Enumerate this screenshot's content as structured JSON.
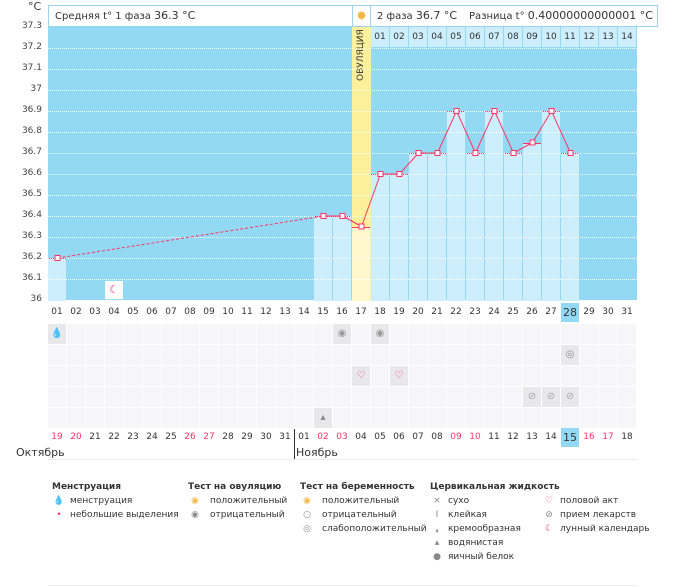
{
  "header": {
    "unit": "°C",
    "phase1": "Средняя t° 1 фаза",
    "phase1_value": "36.3 °C",
    "phase2": "2 фаза",
    "phase2_value": "36.7 °C",
    "diff_label": "Разница t°",
    "diff_value": "0.40000000000001 °C",
    "ovulation_label": "ОВУЛЯЦИЯ"
  },
  "colors": {
    "bg": "#94d9f3",
    "bar": "#cdeefc",
    "ovulation": "#fdf09b",
    "line": "#ff3366",
    "weekend": "#ff3366",
    "highlight": "#94d9f3"
  },
  "chart_data": {
    "type": "line",
    "ylim": [
      36,
      37.3
    ],
    "yticks": [
      "37.3",
      "37.2",
      "37.1",
      "37",
      "36.9",
      "36.8",
      "36.7",
      "36.6",
      "36.5",
      "36.4",
      "36.3",
      "36.2",
      "36.1",
      "36"
    ],
    "days": [
      "01",
      "02",
      "03",
      "04",
      "05",
      "06",
      "07",
      "08",
      "09",
      "10",
      "11",
      "12",
      "13",
      "14",
      "15",
      "16",
      "17",
      "18",
      "19",
      "20",
      "21",
      "22",
      "23",
      "24",
      "25",
      "26",
      "27",
      "28",
      "29",
      "30",
      "31"
    ],
    "temps": [
      36.2,
      null,
      null,
      null,
      null,
      null,
      null,
      null,
      null,
      null,
      null,
      null,
      null,
      null,
      36.4,
      36.4,
      36.35,
      36.6,
      36.6,
      36.7,
      36.7,
      36.9,
      36.7,
      36.9,
      36.7,
      36.75,
      36.9,
      36.7,
      null,
      null,
      null
    ],
    "ovulation_day": 17,
    "current_day": 28,
    "phase2_days": [
      "01",
      "02",
      "03",
      "04",
      "05",
      "06",
      "07",
      "08",
      "09",
      "10",
      "11",
      "12",
      "13",
      "14"
    ]
  },
  "calendar": {
    "dates": [
      "19",
      "20",
      "21",
      "22",
      "23",
      "24",
      "25",
      "26",
      "27",
      "28",
      "29",
      "30",
      "31",
      "01",
      "02",
      "03",
      "04",
      "05",
      "06",
      "07",
      "08",
      "09",
      "10",
      "11",
      "12",
      "13",
      "14",
      "15",
      "16",
      "17",
      "18"
    ],
    "weekends": [
      0,
      1,
      7,
      8,
      14,
      15,
      21,
      22,
      28,
      29
    ],
    "months": [
      "Октябрь",
      "Ноябрь"
    ],
    "moon_day": 4,
    "rows": [
      [
        {
          "d": 1,
          "icon": "menstruation"
        },
        {
          "d": 16,
          "icon": "ovulation-negative"
        },
        {
          "d": 18,
          "icon": "ovulation-negative"
        }
      ],
      [
        {
          "d": 28,
          "icon": "pregnancy-weak"
        }
      ],
      [
        {
          "d": 17,
          "icon": "heart"
        },
        {
          "d": 19,
          "icon": "heart"
        }
      ],
      [
        {
          "d": 26,
          "icon": "pill"
        },
        {
          "d": 27,
          "icon": "pill"
        },
        {
          "d": 28,
          "icon": "pill"
        }
      ],
      [
        {
          "d": 15,
          "icon": "drop"
        }
      ]
    ]
  },
  "legend": [
    {
      "title": "Менструация",
      "items": [
        {
          "icon": "menstruation",
          "label": "менструация",
          "g": "💧"
        },
        {
          "icon": "spotting",
          "label": "небольшие выделения",
          "g": "•"
        }
      ]
    },
    {
      "title": "Тест на овуляцию",
      "items": [
        {
          "icon": "positive",
          "label": "положительный",
          "g": "◉"
        },
        {
          "icon": "negative",
          "label": "отрицательный",
          "g": "◉"
        }
      ]
    },
    {
      "title": "Тест на беременность",
      "items": [
        {
          "icon": "positive",
          "label": "положительный",
          "g": "◉"
        },
        {
          "icon": "negative",
          "label": "отрицательный",
          "g": "○"
        },
        {
          "icon": "weak",
          "label": "слабоположительный",
          "g": "◎"
        }
      ]
    },
    {
      "title": "Цервикальная жидкость",
      "items": [
        {
          "icon": "dry",
          "label": "сухо",
          "g": "×"
        },
        {
          "icon": "sticky",
          "label": "клейкая",
          "g": "I"
        },
        {
          "icon": "creamy",
          "label": "кремообразная",
          "g": "❟"
        },
        {
          "icon": "watery",
          "label": "водянистая",
          "g": "▴"
        },
        {
          "icon": "egg-white",
          "label": "яичный белок",
          "g": "●"
        }
      ]
    },
    {
      "title": "",
      "items": [
        {
          "icon": "heart",
          "label": "половой акт",
          "g": "♡"
        },
        {
          "icon": "pill",
          "label": "прием лекарств",
          "g": "⊘"
        },
        {
          "icon": "moon",
          "label": "лунный календарь",
          "g": "☾"
        }
      ]
    }
  ]
}
